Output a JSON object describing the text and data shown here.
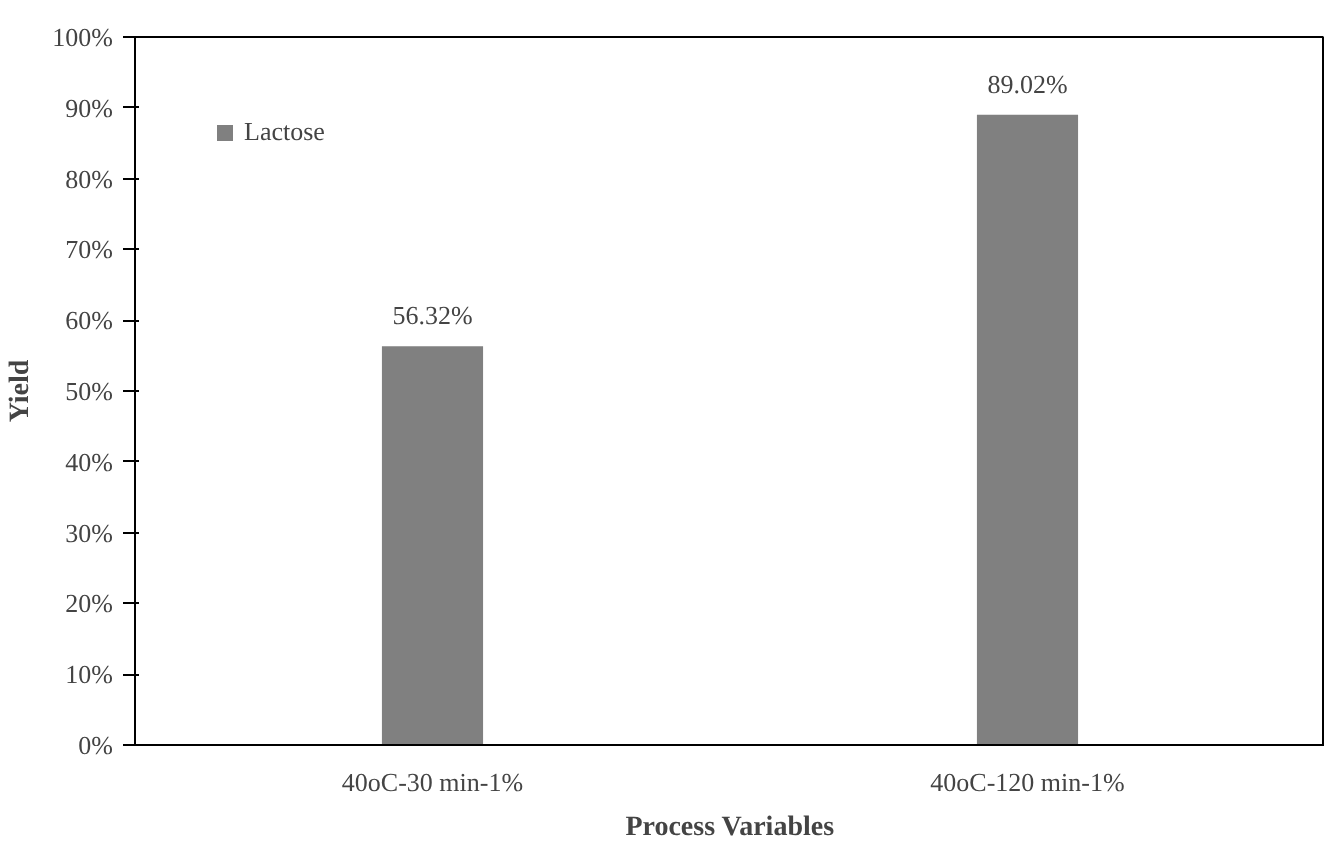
{
  "chart_data": {
    "type": "bar",
    "xlabel": "Process Variables",
    "ylabel": "Yield",
    "categories": [
      "40oC-30 min-1%",
      "40oC-120 min-1%"
    ],
    "series": [
      {
        "name": "Lactose",
        "color": "#808080",
        "values": [
          56.32,
          89.02
        ],
        "value_labels": [
          "56.32%",
          "89.02%"
        ]
      }
    ],
    "ylim": [
      0,
      100
    ],
    "yticks": [
      {
        "value": 0,
        "label": "0%"
      },
      {
        "value": 10,
        "label": "10%"
      },
      {
        "value": 20,
        "label": "20%"
      },
      {
        "value": 30,
        "label": "30%"
      },
      {
        "value": 40,
        "label": "40%"
      },
      {
        "value": 50,
        "label": "50%"
      },
      {
        "value": 60,
        "label": "60%"
      },
      {
        "value": 70,
        "label": "70%"
      },
      {
        "value": 80,
        "label": "80%"
      },
      {
        "value": 90,
        "label": "90%"
      },
      {
        "value": 100,
        "label": "100%"
      }
    ],
    "grid": false,
    "legend": "top left"
  }
}
